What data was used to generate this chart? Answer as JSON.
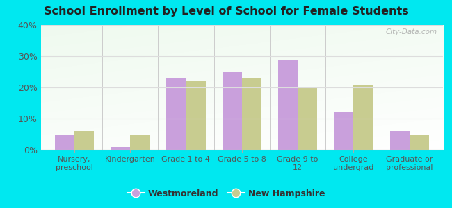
{
  "title": "School Enrollment by Level of School for Female Students",
  "categories": [
    "Nursery,\npreschool",
    "Kindergarten",
    "Grade 1 to 4",
    "Grade 5 to 8",
    "Grade 9 to\n12",
    "College\nundergrad",
    "Graduate or\nprofessional"
  ],
  "westmoreland": [
    5,
    1,
    23,
    25,
    29,
    12,
    6
  ],
  "new_hampshire": [
    6,
    5,
    22,
    23,
    20,
    21,
    5
  ],
  "color_west": "#c9a0dc",
  "color_nh": "#c8cc90",
  "background_fig": "#00e8f0",
  "ylim": [
    0,
    40
  ],
  "yticks": [
    0,
    10,
    20,
    30,
    40
  ],
  "ytick_labels": [
    "0%",
    "10%",
    "20%",
    "30%",
    "40%"
  ],
  "legend_west": "Westmoreland",
  "legend_nh": "New Hampshire",
  "bar_width": 0.35,
  "watermark": "City-Data.com"
}
